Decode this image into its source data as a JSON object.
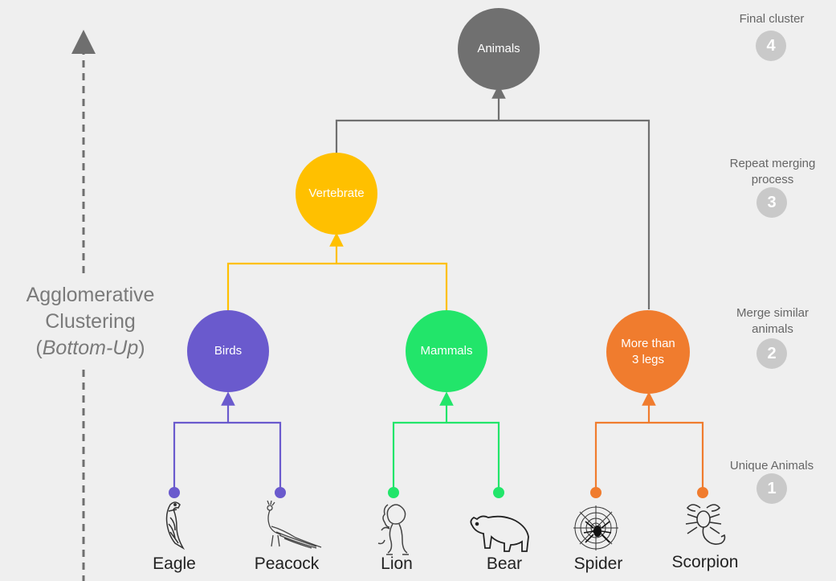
{
  "side_title": {
    "line1": "Agglomerative",
    "line2": "Clustering",
    "line3_paren_open": "(",
    "line3_italic": "Bottom-Up",
    "line3_paren_close": ")"
  },
  "nodes": {
    "root": "Animals",
    "vertebrate": "Vertebrate",
    "birds": "Birds",
    "mammals": "Mammals",
    "legs_line1": "More than",
    "legs_line2": "3 legs"
  },
  "leaves": [
    "Eagle",
    "Peacock",
    "Lion",
    "Bear",
    "Spider",
    "Scorpion"
  ],
  "steps": [
    {
      "text_line1": "Final cluster",
      "text_line2": "",
      "number": "4"
    },
    {
      "text_line1": "Repeat merging",
      "text_line2": "process",
      "number": "3"
    },
    {
      "text_line1": "Merge similar",
      "text_line2": "animals",
      "number": "2"
    },
    {
      "text_line1": "Unique Animals",
      "text_line2": "",
      "number": "1"
    }
  ],
  "colors": {
    "root": "#707070",
    "vertebrate": "#ffc000",
    "birds": "#6a5acd",
    "mammals": "#22e56a",
    "legs": "#f07c2e"
  },
  "icons": [
    "eagle-icon",
    "peacock-icon",
    "lion-icon",
    "bear-icon",
    "spider-icon",
    "scorpion-icon"
  ]
}
